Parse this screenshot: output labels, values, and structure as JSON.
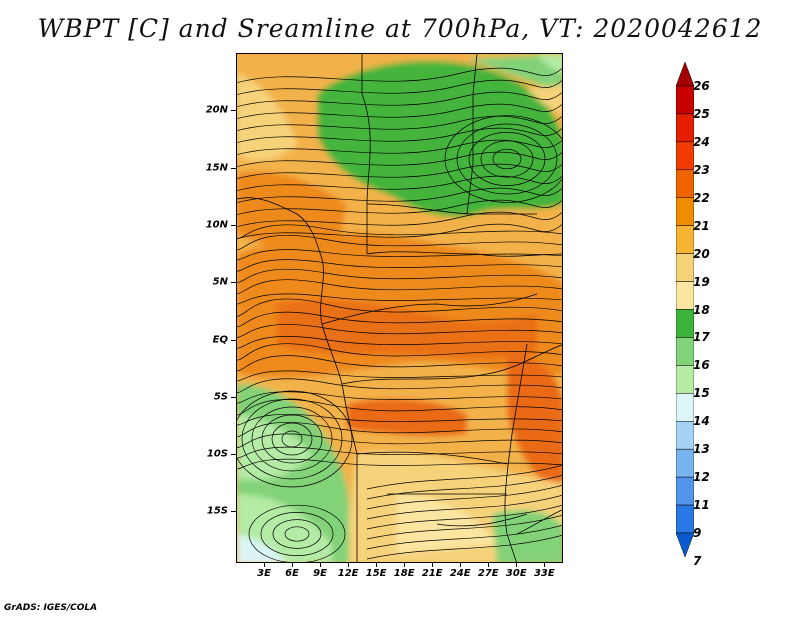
{
  "title": "WBPT [C] and Sreamline at 700hPa, VT: 2020042612",
  "footer": "GrADS: IGES/COLA",
  "map": {
    "lat_labels": [
      "20N",
      "15N",
      "10N",
      "5N",
      "EQ",
      "5S",
      "10S",
      "15S"
    ],
    "lat_values": [
      20,
      15,
      10,
      5,
      0,
      -5,
      -10,
      -15
    ],
    "lon_labels": [
      "3E",
      "6E",
      "9E",
      "12E",
      "15E",
      "18E",
      "21E",
      "24E",
      "27E",
      "30E",
      "33E"
    ],
    "lon_values": [
      3,
      6,
      9,
      12,
      15,
      18,
      21,
      24,
      27,
      30,
      33
    ],
    "lat_range": [
      -19.5,
      25
    ],
    "lon_range": [
      0,
      35
    ]
  },
  "colorbar": {
    "labels": [
      "26",
      "25",
      "24",
      "23",
      "22",
      "21",
      "20",
      "19",
      "18",
      "17",
      "16",
      "15",
      "14",
      "13",
      "12",
      "11",
      "9",
      "7"
    ],
    "colors": [
      "#a50000",
      "#c80000",
      "#e61e00",
      "#f03c00",
      "#f06400",
      "#f08c00",
      "#f5b432",
      "#f5d278",
      "#fae6a0",
      "#3cb43c",
      "#82d278",
      "#b4eba5",
      "#dcf5f5",
      "#a5d2f5",
      "#78b4f0",
      "#5096eb",
      "#2878e6",
      "#0a5ad2"
    ]
  }
}
